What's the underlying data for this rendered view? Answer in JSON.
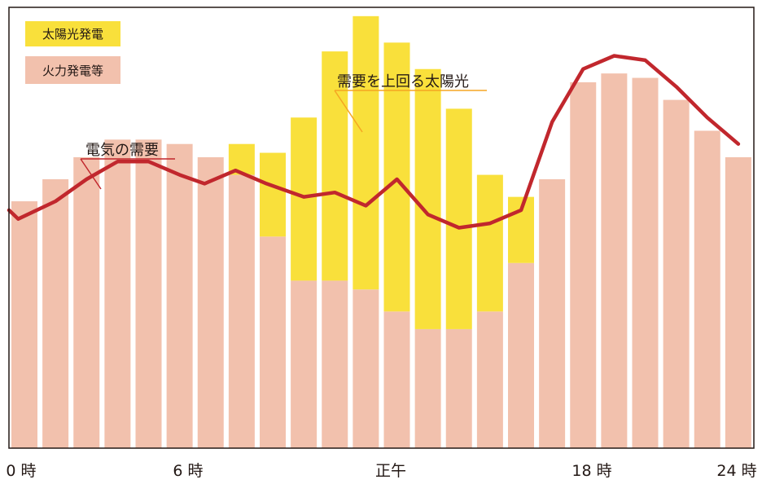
{
  "chart_data": {
    "type": "bar",
    "x": [
      0,
      1,
      2,
      3,
      4,
      5,
      6,
      7,
      8,
      9,
      10,
      11,
      12,
      13,
      14,
      15,
      16,
      17,
      18,
      19,
      20,
      21,
      22,
      23
    ],
    "series": [
      {
        "name": "火力発電等",
        "values": [
          56,
          61,
          66,
          70,
          70,
          69,
          66,
          62,
          48,
          38,
          38,
          36,
          31,
          27,
          27,
          31,
          42,
          61,
          83,
          85,
          84,
          79,
          72,
          66
        ]
      },
      {
        "name": "太陽光発電",
        "values": [
          0,
          0,
          0,
          0,
          0,
          0,
          0,
          7,
          19,
          37,
          52,
          62,
          61,
          59,
          50,
          31,
          15,
          0,
          0,
          0,
          0,
          0,
          0,
          0
        ]
      }
    ],
    "demand_line": {
      "name": "電気の需要",
      "x": [
        -0.3,
        0.3,
        1.5,
        2.5,
        3.5,
        4.5,
        5.5,
        6.3,
        7.3,
        8.3,
        9.5,
        10.5,
        11.5,
        12.5,
        13.5,
        14.5,
        15.5,
        16.5,
        17.5,
        18.5,
        19.5,
        20.5,
        21.5,
        22.5,
        23.5
      ],
      "values": [
        54,
        52,
        56,
        61,
        65,
        65,
        62,
        60,
        63,
        60,
        57,
        58,
        55,
        61,
        53,
        50,
        51,
        54,
        74,
        86,
        89,
        88,
        82,
        75,
        69
      ]
    },
    "annotations": [
      "需要を上回る太陽光"
    ],
    "x_tick_labels": [
      {
        "x": 0,
        "label": "0 時"
      },
      {
        "x": 6,
        "label": "6 時"
      },
      {
        "x": 12,
        "label": "正午"
      },
      {
        "x": 18,
        "label": "18 時"
      },
      {
        "x": 24,
        "label": "24 時"
      }
    ],
    "ylim": [
      0,
      100
    ],
    "colors": {
      "solar": "#f9e03b",
      "thermal": "#f2c1ad",
      "demand": "#c1272d",
      "annotation_line": "#f5a623",
      "frame": "#231815"
    },
    "legend": "top-left",
    "grid": false
  }
}
